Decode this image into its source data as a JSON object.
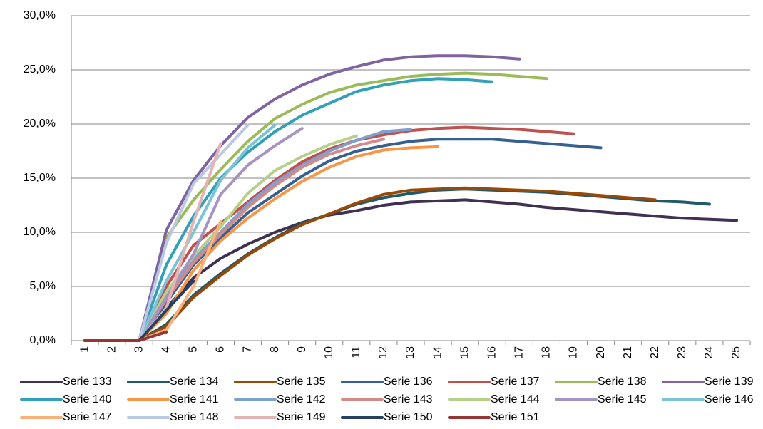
{
  "chart_data": {
    "type": "line",
    "categories": [
      "1",
      "2",
      "3",
      "4",
      "5",
      "6",
      "7",
      "8",
      "9",
      "10",
      "11",
      "12",
      "13",
      "14",
      "15",
      "16",
      "17",
      "18",
      "19",
      "20",
      "21",
      "22",
      "23",
      "24",
      "25"
    ],
    "ylim": [
      0,
      30
    ],
    "yticks": [
      {
        "value": 0,
        "label": "0,0%"
      },
      {
        "value": 5,
        "label": "5,0%"
      },
      {
        "value": 10,
        "label": "10,0%"
      },
      {
        "value": 15,
        "label": "15,0%"
      },
      {
        "value": 20,
        "label": "20,0%"
      },
      {
        "value": 25,
        "label": "25,0%"
      },
      {
        "value": 30,
        "label": "30,0%"
      }
    ],
    "grid": true,
    "legend": "bottom",
    "series": [
      {
        "name": "Serie 133",
        "color": "#403152",
        "values": [
          0,
          0,
          0,
          3.0,
          5.8,
          7.6,
          8.9,
          10.0,
          10.9,
          11.6,
          12.0,
          12.5,
          12.8,
          12.9,
          13.0,
          12.8,
          12.6,
          12.3,
          12.1,
          11.9,
          11.7,
          11.5,
          11.3,
          11.2,
          11.1
        ]
      },
      {
        "name": "Serie 134",
        "color": "#215968",
        "values": [
          0,
          0,
          0,
          1.5,
          4.2,
          6.2,
          8.0,
          9.5,
          10.8,
          11.7,
          12.6,
          13.2,
          13.6,
          13.9,
          14.0,
          13.9,
          13.8,
          13.7,
          13.5,
          13.3,
          13.1,
          12.9,
          12.8,
          12.6,
          null
        ]
      },
      {
        "name": "Serie 135",
        "color": "#984807",
        "values": [
          0,
          0,
          0,
          1.3,
          4.0,
          6.0,
          7.9,
          9.4,
          10.7,
          11.7,
          12.7,
          13.5,
          13.9,
          14.0,
          14.1,
          14.0,
          13.9,
          13.8,
          13.6,
          13.4,
          13.2,
          13.0,
          null,
          null,
          null
        ]
      },
      {
        "name": "Serie 136",
        "color": "#376092",
        "values": [
          0,
          0,
          0,
          3.5,
          7.0,
          9.5,
          11.8,
          13.5,
          15.2,
          16.6,
          17.5,
          18.0,
          18.4,
          18.6,
          18.6,
          18.6,
          18.4,
          18.2,
          18.0,
          17.8,
          null,
          null,
          null,
          null,
          null
        ]
      },
      {
        "name": "Serie 137",
        "color": "#c0504d",
        "values": [
          0,
          0,
          0,
          5.0,
          8.8,
          10.8,
          12.8,
          14.8,
          16.5,
          17.7,
          18.5,
          19.0,
          19.4,
          19.6,
          19.7,
          19.6,
          19.5,
          19.3,
          19.1,
          null,
          null,
          null,
          null,
          null,
          null
        ]
      },
      {
        "name": "Serie 138",
        "color": "#9bbb59",
        "values": [
          0,
          0,
          0,
          9.5,
          13.0,
          15.8,
          18.4,
          20.5,
          21.8,
          22.9,
          23.6,
          24.0,
          24.4,
          24.6,
          24.7,
          24.6,
          24.4,
          24.2,
          null,
          null,
          null,
          null,
          null,
          null,
          null
        ]
      },
      {
        "name": "Serie 139",
        "color": "#8064a2",
        "values": [
          0,
          0,
          0,
          10.2,
          14.8,
          18.0,
          20.6,
          22.3,
          23.6,
          24.6,
          25.3,
          25.9,
          26.2,
          26.3,
          26.3,
          26.2,
          26.0,
          null,
          null,
          null,
          null,
          null,
          null,
          null,
          null
        ]
      },
      {
        "name": "Serie 140",
        "color": "#31a0b8",
        "values": [
          0,
          0,
          0,
          7.0,
          11.5,
          15.0,
          17.4,
          19.3,
          20.8,
          21.9,
          23.0,
          23.6,
          24.0,
          24.2,
          24.1,
          23.9,
          null,
          null,
          null,
          null,
          null,
          null,
          null,
          null,
          null
        ]
      },
      {
        "name": "Serie 141",
        "color": "#f79646",
        "values": [
          0,
          0,
          0,
          2.5,
          6.5,
          9.2,
          11.3,
          13.1,
          14.7,
          16.0,
          17.0,
          17.6,
          17.8,
          17.9,
          null,
          null,
          null,
          null,
          null,
          null,
          null,
          null,
          null,
          null,
          null
        ]
      },
      {
        "name": "Serie 142",
        "color": "#7f9fcf",
        "values": [
          0,
          0,
          0,
          4.0,
          7.5,
          10.0,
          12.6,
          14.6,
          16.2,
          17.5,
          18.5,
          19.3,
          19.5,
          null,
          null,
          null,
          null,
          null,
          null,
          null,
          null,
          null,
          null,
          null,
          null
        ]
      },
      {
        "name": "Serie 143",
        "color": "#d48a88",
        "values": [
          0,
          0,
          0,
          3.8,
          7.2,
          9.8,
          12.3,
          14.3,
          16.0,
          17.2,
          18.0,
          18.6,
          null,
          null,
          null,
          null,
          null,
          null,
          null,
          null,
          null,
          null,
          null,
          null,
          null
        ]
      },
      {
        "name": "Serie 144",
        "color": "#b5d08a",
        "values": [
          0,
          0,
          0,
          4.5,
          7.8,
          10.5,
          13.6,
          15.7,
          17.0,
          18.1,
          18.9,
          null,
          null,
          null,
          null,
          null,
          null,
          null,
          null,
          null,
          null,
          null,
          null,
          null,
          null
        ]
      },
      {
        "name": "Serie 145",
        "color": "#a593c2",
        "values": [
          0,
          0,
          0,
          4.0,
          8.0,
          13.5,
          16.2,
          18.0,
          19.6,
          null,
          null,
          null,
          null,
          null,
          null,
          null,
          null,
          null,
          null,
          null,
          null,
          null,
          null,
          null,
          null
        ]
      },
      {
        "name": "Serie 146",
        "color": "#7cc3d6",
        "values": [
          0,
          0,
          0,
          5.5,
          10.0,
          14.8,
          17.8,
          19.9,
          null,
          null,
          null,
          null,
          null,
          null,
          null,
          null,
          null,
          null,
          null,
          null,
          null,
          null,
          null,
          null,
          null
        ]
      },
      {
        "name": "Serie 147",
        "color": "#fab07a",
        "values": [
          0,
          0,
          0,
          1.0,
          5.0,
          11.0,
          null,
          null,
          null,
          null,
          null,
          null,
          null,
          null,
          null,
          null,
          null,
          null,
          null,
          null,
          null,
          null,
          null,
          null,
          null
        ]
      },
      {
        "name": "Serie 148",
        "color": "#b9c9e3",
        "values": [
          0,
          0,
          0,
          9.0,
          14.5,
          17.2,
          19.9,
          null,
          null,
          null,
          null,
          null,
          null,
          null,
          null,
          null,
          null,
          null,
          null,
          null,
          null,
          null,
          null,
          null,
          null
        ]
      },
      {
        "name": "Serie 149",
        "color": "#e3b4b3",
        "values": [
          0,
          0,
          0,
          3.0,
          11.0,
          18.2,
          null,
          null,
          null,
          null,
          null,
          null,
          null,
          null,
          null,
          null,
          null,
          null,
          null,
          null,
          null,
          null,
          null,
          null,
          null
        ]
      },
      {
        "name": "Serie 150",
        "color": "#254061",
        "values": [
          0,
          0,
          0,
          2.8,
          5.5,
          null,
          null,
          null,
          null,
          null,
          null,
          null,
          null,
          null,
          null,
          null,
          null,
          null,
          null,
          null,
          null,
          null,
          null,
          null,
          null
        ]
      },
      {
        "name": "Serie 151",
        "color": "#953735",
        "values": [
          0,
          0,
          0,
          0.8,
          null,
          null,
          null,
          null,
          null,
          null,
          null,
          null,
          null,
          null,
          null,
          null,
          null,
          null,
          null,
          null,
          null,
          null,
          null,
          null,
          null
        ]
      }
    ]
  }
}
